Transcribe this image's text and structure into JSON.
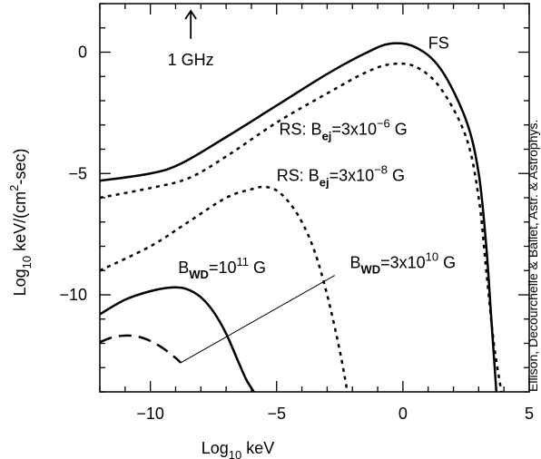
{
  "chart_data": {
    "type": "line",
    "xlabel": "Log10 keV",
    "ylabel": "Log10 keV/(cm2-sec)",
    "xlabel_parts": {
      "base": "Log",
      "sub": "10",
      "rest": " keV"
    },
    "ylabel_parts": {
      "base": "Log",
      "sub": "10",
      "mid": " keV/(cm",
      "sup": "2",
      "end": "-sec)"
    },
    "xlim": [
      -12,
      5
    ],
    "ylim": [
      -14,
      2
    ],
    "x_major_ticks": [
      -10,
      -5,
      0,
      5
    ],
    "y_major_ticks": [
      -10,
      -5,
      0
    ],
    "x_tick_labels": [
      "−10",
      "−5",
      "0",
      "5"
    ],
    "y_tick_labels": [
      "−10",
      "−5",
      "0"
    ],
    "grid": false,
    "series": [
      {
        "name": "FS",
        "style": "solid",
        "x": [
          -12,
          -10,
          -8.8,
          -7,
          -5,
          -3,
          -1.5,
          -0.5,
          0.5,
          1.5,
          2.5,
          3,
          3.3,
          3.5,
          3.7
        ],
        "y": [
          -5.3,
          -5.0,
          -4.6,
          -3.5,
          -2.2,
          -0.9,
          -0.05,
          0.35,
          0.2,
          -0.7,
          -2.8,
          -5.0,
          -8.0,
          -11.0,
          -14.0
        ]
      },
      {
        "name": "RS: Bej=3x10^-6 G",
        "style": "dotted",
        "x": [
          -12,
          -10,
          -8.5,
          -7,
          -5,
          -3,
          -1.5,
          -0.5,
          0.5,
          1.5,
          2.5,
          3,
          3.3,
          3.6,
          3.9
        ],
        "y": [
          -6.0,
          -5.6,
          -5.2,
          -4.3,
          -2.9,
          -1.7,
          -0.85,
          -0.5,
          -0.6,
          -1.5,
          -3.5,
          -6.0,
          -9.0,
          -12.0,
          -14.0
        ]
      },
      {
        "name": "RS: Bej=3x10^-8 G",
        "style": "dotted",
        "x": [
          -12,
          -10,
          -8.5,
          -7,
          -6,
          -5.5,
          -5,
          -4.5,
          -4,
          -3.5,
          -3,
          -2.5,
          -2.2
        ],
        "y": [
          -9.0,
          -8.0,
          -7.0,
          -6.0,
          -5.65,
          -5.55,
          -5.7,
          -6.2,
          -7.0,
          -8.2,
          -10.0,
          -12.3,
          -14.0
        ]
      },
      {
        "name": "BWD=10^11 G",
        "style": "solid",
        "x": [
          -12,
          -11,
          -10,
          -9.2,
          -8.6,
          -8,
          -7.5,
          -7,
          -6.5,
          -6.2,
          -5.9
        ],
        "y": [
          -10.8,
          -10.2,
          -9.85,
          -9.7,
          -9.75,
          -10.1,
          -10.7,
          -11.6,
          -12.8,
          -13.5,
          -14.0
        ]
      },
      {
        "name": "BWD=3x10^10 G",
        "style": "dashed",
        "x": [
          -12,
          -11.5,
          -11,
          -10.5,
          -10,
          -9.5,
          -9,
          -8.8
        ],
        "y": [
          -11.95,
          -11.75,
          -11.68,
          -11.72,
          -11.9,
          -12.2,
          -12.6,
          -12.8
        ]
      }
    ],
    "leader_line": {
      "from": [
        -8.8,
        -12.8
      ],
      "to": [
        -2.7,
        -9.2
      ]
    },
    "annotations": [
      {
        "id": "fs",
        "text": "FS",
        "x": 1.0,
        "y": 0.15
      },
      {
        "id": "rs6",
        "prefix": "RS: B",
        "sub": "ej",
        "mid": "=3x10",
        "sup": "−6",
        "end": " G",
        "x": -4.9,
        "y": -3.4
      },
      {
        "id": "rs8",
        "prefix": "RS: B",
        "sub": "ej",
        "mid": "=3x10",
        "sup": "−8",
        "end": " G",
        "x": -5.0,
        "y": -5.3
      },
      {
        "id": "bwd11",
        "prefix": "B",
        "sub": "WD",
        "mid": "=10",
        "sup": "11",
        "end": " G",
        "x": -8.9,
        "y": -9.1
      },
      {
        "id": "bwd10",
        "prefix": "B",
        "sub": "WD",
        "mid": "=3x10",
        "sup": "10",
        "end": " G",
        "x": -2.1,
        "y": -8.9
      }
    ],
    "marker": {
      "text": "1 GHz",
      "x": -8.4,
      "y_arrow_top": 1.7,
      "y_arrow_bottom": 0.55,
      "y_text": -0.55
    }
  },
  "credit_text": "Ellison, Decourchelle & Ballet, Astr. & Astrophys."
}
